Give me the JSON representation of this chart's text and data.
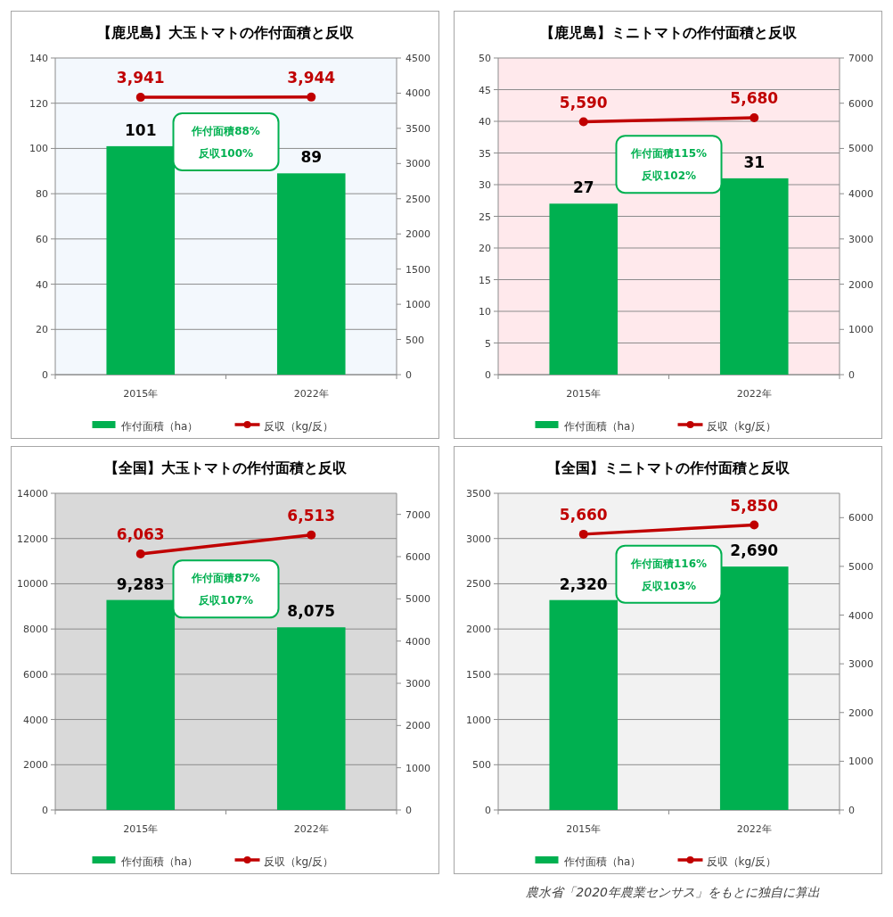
{
  "chart_data": [
    {
      "type": "bar",
      "title": "【鹿児島】大玉トマトの作付面積と反収",
      "categories": [
        "2015年",
        "2022年"
      ],
      "ylim": [
        0,
        140
      ],
      "yticks": [
        0,
        20,
        40,
        60,
        80,
        100,
        120,
        140
      ],
      "y2lim": [
        0,
        4500
      ],
      "y2ticks": [
        0,
        500,
        1000,
        1500,
        2000,
        2500,
        3000,
        3500,
        4000,
        4500
      ],
      "grid": "y",
      "legend": "bottom",
      "bands": [
        {
          "axis": "y",
          "from": 0,
          "to": 140,
          "color": "#f3f8fd"
        }
      ],
      "annotations": [
        "作付面積88%",
        "反収100%"
      ],
      "series": [
        {
          "name": "作付面積（ha）",
          "color": "#00b050",
          "values": [
            101,
            89
          ],
          "value_labels": [
            "101",
            "89"
          ]
        },
        {
          "name": "反収（kg/反）",
          "type": "line",
          "axis": "y2",
          "color": "#c00000",
          "marker": "circle",
          "values": [
            3941,
            3944
          ],
          "value_labels": [
            "3,941",
            "3,944"
          ]
        }
      ]
    },
    {
      "type": "bar",
      "title": "【鹿児島】ミニトマトの作付面積と反収",
      "categories": [
        "2015年",
        "2022年"
      ],
      "ylim": [
        0,
        50
      ],
      "yticks": [
        0,
        5,
        10,
        15,
        20,
        25,
        30,
        35,
        40,
        45,
        50
      ],
      "y2lim": [
        0,
        7000
      ],
      "y2ticks": [
        0,
        1000,
        2000,
        3000,
        4000,
        5000,
        6000,
        7000
      ],
      "grid": "y",
      "legend": "bottom",
      "bands": [
        {
          "axis": "y",
          "from": 0,
          "to": 50,
          "color": "#ffe9ec"
        }
      ],
      "annotations": [
        "作付面積115%",
        "反収102%"
      ],
      "series": [
        {
          "name": "作付面積（ha）",
          "color": "#00b050",
          "values": [
            27,
            31
          ],
          "value_labels": [
            "27",
            "31"
          ]
        },
        {
          "name": "反収（kg/反）",
          "type": "line",
          "axis": "y2",
          "color": "#c00000",
          "marker": "circle",
          "values": [
            5590,
            5680
          ],
          "value_labels": [
            "5,590",
            "5,680"
          ]
        }
      ]
    },
    {
      "type": "bar",
      "title": "【全国】大玉トマトの作付面積と反収",
      "categories": [
        "2015年",
        "2022年"
      ],
      "ylim": [
        0,
        14000
      ],
      "yticks": [
        0,
        2000,
        4000,
        6000,
        8000,
        10000,
        12000,
        14000
      ],
      "y2lim": [
        0,
        7500
      ],
      "y2ticks": [
        0,
        1000,
        2000,
        3000,
        4000,
        5000,
        6000,
        7000
      ],
      "grid": "y",
      "legend": "bottom",
      "bands": [
        {
          "axis": "y",
          "from": 0,
          "to": 14000,
          "color": "#d9d9d9"
        }
      ],
      "annotations": [
        "作付面積87%",
        "反収107%"
      ],
      "series": [
        {
          "name": "作付面積（ha）",
          "color": "#00b050",
          "values": [
            9283,
            8075
          ],
          "value_labels": [
            "9,283",
            "8,075"
          ]
        },
        {
          "name": "反収（kg/反）",
          "type": "line",
          "axis": "y2",
          "color": "#c00000",
          "marker": "circle",
          "values": [
            6063,
            6513
          ],
          "value_labels": [
            "6,063",
            "6,513"
          ]
        }
      ]
    },
    {
      "type": "bar",
      "title": "【全国】ミニトマトの作付面積と反収",
      "categories": [
        "2015年",
        "2022年"
      ],
      "ylim": [
        0,
        3500
      ],
      "yticks": [
        0,
        500,
        1000,
        1500,
        2000,
        2500,
        3000,
        3500
      ],
      "y2lim": [
        0,
        6500
      ],
      "y2ticks": [
        0,
        1000,
        2000,
        3000,
        4000,
        5000,
        6000
      ],
      "grid": "y",
      "legend": "bottom",
      "bands": [
        {
          "axis": "y",
          "from": 0,
          "to": 3500,
          "color": "#f2f2f2"
        }
      ],
      "annotations": [
        "作付面積116%",
        "反収103%",
        "農水省「2020年農業センサス」をもとに独自に算出"
      ],
      "series": [
        {
          "name": "作付面積（ha）",
          "color": "#00b050",
          "values": [
            2320,
            2690
          ],
          "value_labels": [
            "2,320",
            "2,690"
          ]
        },
        {
          "name": "反収（kg/反）",
          "type": "line",
          "axis": "y2",
          "color": "#c00000",
          "marker": "circle",
          "values": [
            5660,
            5850
          ],
          "value_labels": [
            "5,660",
            "5,850"
          ]
        }
      ]
    }
  ]
}
